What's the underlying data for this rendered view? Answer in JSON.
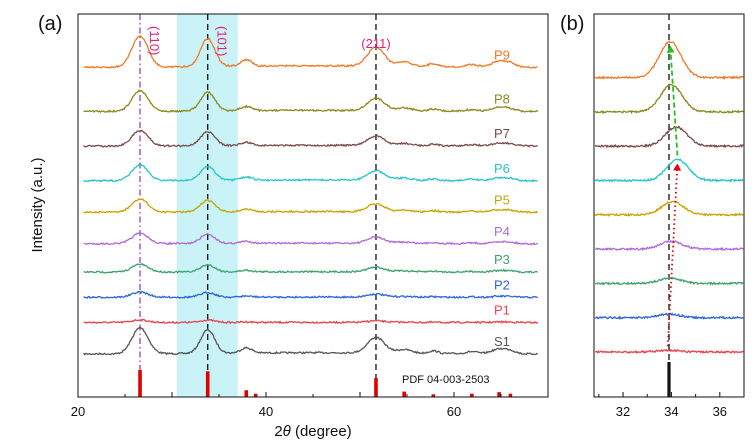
{
  "chart_data": [
    {
      "panel": "(a)",
      "type": "line",
      "xlabel_prefix": "2",
      "xlabel_theta": "θ",
      "xlabel_suffix": " (degree)",
      "ylabel": "Intensity (a.u.)",
      "xlim": [
        20,
        70
      ],
      "xticks": [
        20,
        40,
        60
      ],
      "highlight_range": [
        30.5,
        37
      ],
      "highlight_color": "#c9f3f7",
      "reference_lines": [
        {
          "x": 26.6,
          "style": "dash-dot",
          "color": "#9a3fd0"
        },
        {
          "x": 33.8,
          "style": "dashed",
          "color": "#111111"
        },
        {
          "x": 51.7,
          "style": "dashed",
          "color": "#111111"
        }
      ],
      "peak_labels": [
        {
          "text": "(110)",
          "x": 26.6,
          "vertical": true
        },
        {
          "text": "(101)",
          "x": 33.8,
          "vertical": true
        },
        {
          "text": "(211)",
          "x": 51.7,
          "vertical": false
        }
      ],
      "peaks_2theta": [
        {
          "x": 26.6,
          "w": 0.85,
          "rel": 1.0
        },
        {
          "x": 33.8,
          "w": 0.75,
          "rel": 0.9
        },
        {
          "x": 37.9,
          "w": 0.6,
          "rel": 0.2
        },
        {
          "x": 51.7,
          "w": 0.9,
          "rel": 0.6
        },
        {
          "x": 54.7,
          "w": 0.8,
          "rel": 0.14
        },
        {
          "x": 57.8,
          "w": 0.5,
          "rel": 0.1
        },
        {
          "x": 61.9,
          "w": 0.6,
          "rel": 0.08
        },
        {
          "x": 64.8,
          "w": 0.8,
          "rel": 0.18
        },
        {
          "x": 66.0,
          "w": 0.6,
          "rel": 0.1
        }
      ],
      "series": [
        {
          "name": "S1",
          "color": "#555555",
          "base": 0.0,
          "amp": 10
        },
        {
          "name": "P1",
          "color": "#e8424a",
          "base": 1.0,
          "amp": 1
        },
        {
          "name": "P2",
          "color": "#2a66d6",
          "base": 1.8,
          "amp": 2
        },
        {
          "name": "P3",
          "color": "#3aa36a",
          "base": 2.6,
          "amp": 3
        },
        {
          "name": "P4",
          "color": "#b06ad8",
          "base": 3.5,
          "amp": 4
        },
        {
          "name": "P5",
          "color": "#c9a400",
          "base": 4.5,
          "amp": 5
        },
        {
          "name": "P6",
          "color": "#29c4c9",
          "base": 5.5,
          "amp": 6
        },
        {
          "name": "P7",
          "color": "#7b4a4a",
          "base": 6.6,
          "amp": 6
        },
        {
          "name": "P8",
          "color": "#8a8a1c",
          "base": 7.7,
          "amp": 8
        },
        {
          "name": "P9",
          "color": "#f07a26",
          "base": 9.1,
          "amp": 12
        }
      ],
      "reference_pattern": {
        "label": "PDF 04-003-2503",
        "color": "#e00000",
        "sticks": [
          {
            "x": 26.6,
            "h": 1.0
          },
          {
            "x": 33.8,
            "h": 0.95
          },
          {
            "x": 37.9,
            "h": 0.25
          },
          {
            "x": 38.9,
            "h": 0.12
          },
          {
            "x": 51.7,
            "h": 0.7
          },
          {
            "x": 54.7,
            "h": 0.2
          },
          {
            "x": 57.8,
            "h": 0.1
          },
          {
            "x": 61.9,
            "h": 0.12
          },
          {
            "x": 64.8,
            "h": 0.18
          },
          {
            "x": 66.0,
            "h": 0.12
          }
        ]
      }
    },
    {
      "panel": "(b)",
      "type": "line",
      "xlim": [
        30.8,
        37
      ],
      "xticks": [
        32,
        34,
        36
      ],
      "reference_line": {
        "x": 33.9,
        "style": "dashed",
        "color": "#111111"
      },
      "reference_stick": {
        "x": 33.9,
        "color": "#111111"
      },
      "peak_centers": [
        {
          "name": "P1",
          "x": 33.85,
          "amp": 0.03
        },
        {
          "name": "P2",
          "x": 33.9,
          "amp": 0.06
        },
        {
          "name": "P3",
          "x": 33.95,
          "amp": 0.09
        },
        {
          "name": "P4",
          "x": 34.0,
          "amp": 0.13
        },
        {
          "name": "P5",
          "x": 34.05,
          "amp": 0.22
        },
        {
          "name": "P6",
          "x": 34.25,
          "amp": 0.35
        },
        {
          "name": "P7",
          "x": 34.2,
          "amp": 0.32
        },
        {
          "name": "P8",
          "x": 34.0,
          "amp": 0.45
        },
        {
          "name": "P9",
          "x": 33.95,
          "amp": 0.6
        }
      ],
      "arrows": [
        {
          "from_x": 33.85,
          "to_x": 34.25,
          "from_series": "P1",
          "to_series": "P6",
          "color": "#e00000",
          "style": "dotted"
        },
        {
          "from_x": 34.25,
          "to_x": 33.95,
          "from_series": "P6",
          "to_series": "P9",
          "color": "#22c022",
          "style": "dashed"
        }
      ]
    }
  ]
}
